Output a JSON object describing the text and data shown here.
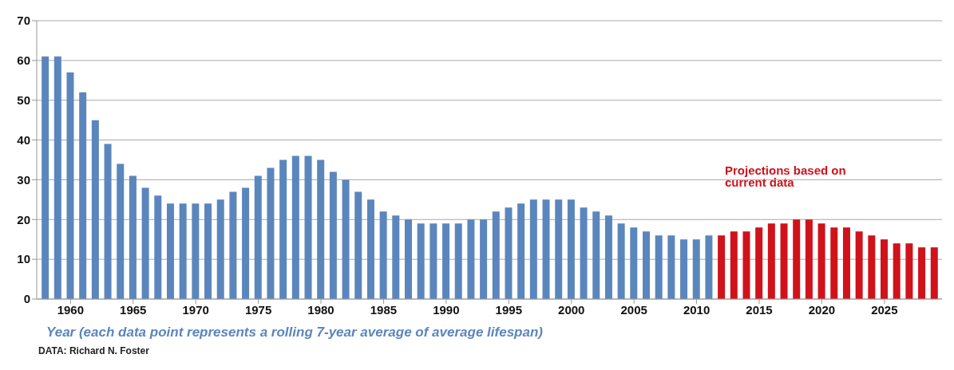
{
  "chart_data": {
    "type": "bar",
    "xlabel": "Year (each data point represents a rolling 7-year average of average lifespan)",
    "x": [
      1958,
      1959,
      1960,
      1961,
      1962,
      1963,
      1964,
      1965,
      1966,
      1967,
      1968,
      1969,
      1970,
      1971,
      1972,
      1973,
      1974,
      1975,
      1976,
      1977,
      1978,
      1979,
      1980,
      1981,
      1982,
      1983,
      1984,
      1985,
      1986,
      1987,
      1988,
      1989,
      1990,
      1991,
      1992,
      1993,
      1994,
      1995,
      1996,
      1997,
      1998,
      1999,
      2000,
      2001,
      2002,
      2003,
      2004,
      2005,
      2006,
      2007,
      2008,
      2009,
      2010,
      2011,
      2012,
      2013,
      2014,
      2015,
      2016,
      2017,
      2018,
      2019,
      2020,
      2021,
      2022,
      2023,
      2024,
      2025,
      2026,
      2027,
      2028,
      2029
    ],
    "values": [
      61,
      61,
      57,
      52,
      45,
      39,
      34,
      31,
      28,
      26,
      24,
      24,
      24,
      24,
      25,
      27,
      28,
      31,
      33,
      35,
      36,
      36,
      35,
      32,
      30,
      27,
      25,
      22,
      21,
      20,
      19,
      19,
      19,
      19,
      20,
      20,
      22,
      23,
      24,
      25,
      25,
      25,
      25,
      23,
      22,
      21,
      19,
      18,
      17,
      16,
      16,
      15,
      15,
      16,
      16,
      17,
      17,
      18,
      19,
      19,
      20,
      20,
      19,
      18,
      18,
      17,
      16,
      15,
      14,
      14,
      13,
      13
    ],
    "colors": [
      "#5b86bd",
      "#5b86bd",
      "#5b86bd",
      "#5b86bd",
      "#5b86bd",
      "#5b86bd",
      "#5b86bd",
      "#5b86bd",
      "#5b86bd",
      "#5b86bd",
      "#5b86bd",
      "#5b86bd",
      "#5b86bd",
      "#5b86bd",
      "#5b86bd",
      "#5b86bd",
      "#5b86bd",
      "#5b86bd",
      "#5b86bd",
      "#5b86bd",
      "#5b86bd",
      "#5b86bd",
      "#5b86bd",
      "#5b86bd",
      "#5b86bd",
      "#5b86bd",
      "#5b86bd",
      "#5b86bd",
      "#5b86bd",
      "#5b86bd",
      "#5b86bd",
      "#5b86bd",
      "#5b86bd",
      "#5b86bd",
      "#5b86bd",
      "#5b86bd",
      "#5b86bd",
      "#5b86bd",
      "#5b86bd",
      "#5b86bd",
      "#5b86bd",
      "#5b86bd",
      "#5b86bd",
      "#5b86bd",
      "#5b86bd",
      "#5b86bd",
      "#5b86bd",
      "#5b86bd",
      "#5b86bd",
      "#5b86bd",
      "#5b86bd",
      "#5b86bd",
      "#5b86bd",
      "#5b86bd",
      "#d0121b",
      "#d0121b",
      "#d0121b",
      "#d0121b",
      "#d0121b",
      "#d0121b",
      "#d0121b",
      "#d0121b",
      "#d0121b",
      "#d0121b",
      "#d0121b",
      "#d0121b",
      "#d0121b",
      "#d0121b",
      "#d0121b",
      "#d0121b",
      "#d0121b",
      "#d0121b"
    ],
    "xlim": [
      1957.3,
      2029.6
    ],
    "xticks": [
      1960,
      1965,
      1970,
      1975,
      1980,
      1985,
      1990,
      1995,
      2000,
      2005,
      2010,
      2015,
      2020,
      2025
    ],
    "ylim": [
      0,
      70
    ],
    "yticks": [
      0,
      10,
      20,
      30,
      40,
      50,
      60,
      70
    ],
    "grid": "y",
    "annotations": [
      "Projections based on current data",
      "DATA: Richard N. Foster"
    ]
  }
}
